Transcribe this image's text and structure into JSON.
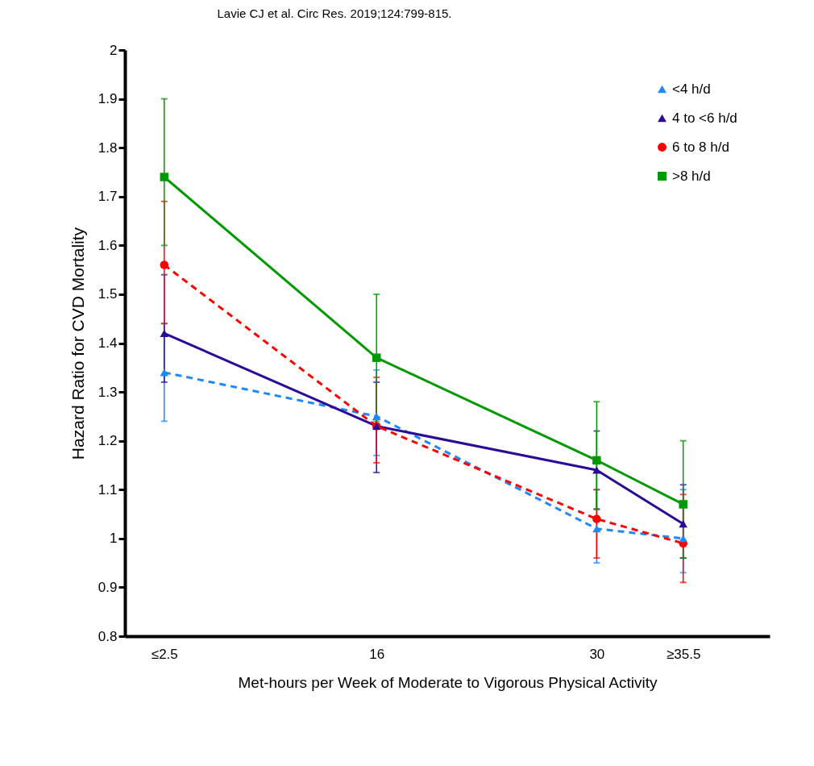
{
  "chart_data": {
    "type": "line",
    "xlabel": "Met-hours per Week of Moderate to Vigorous Physical Activity",
    "ylabel": "Hazard Ratio for CVD Mortality",
    "annotations": [
      "Lavie CJ et al. Circ Res. 2019;124:799-815."
    ],
    "x": [
      2.5,
      16,
      30,
      35.5
    ],
    "xlim": [
      0,
      41
    ],
    "xticks": [
      {
        "value": 2.5,
        "label": "≤2.5"
      },
      16,
      30,
      {
        "value": 35.5,
        "label": "≥35.5"
      }
    ],
    "ylim": [
      0.8,
      2
    ],
    "yticks": [
      0.8,
      0.9,
      1,
      1.1,
      1.2,
      1.3,
      1.4,
      1.5,
      1.6,
      1.7,
      1.8,
      1.9,
      2
    ],
    "grid": false,
    "legend": "top right",
    "series": [
      {
        "name": "<4 h/d",
        "color": "#1e88ff",
        "marker": "triangle",
        "line_style": "dashed",
        "values": [
          1.34,
          1.25,
          1.02,
          1.0
        ],
        "errors": [
          [
            1.24,
            1.44
          ],
          [
            1.17,
            1.345
          ],
          [
            0.95,
            1.1
          ],
          [
            0.93,
            1.1
          ]
        ]
      },
      {
        "name": "4 to <6 h/d",
        "color": "#2a0a96",
        "marker": "triangle",
        "line_style": "solid",
        "values": [
          1.42,
          1.23,
          1.14,
          1.03
        ],
        "errors": [
          [
            1.32,
            1.54
          ],
          [
            1.135,
            1.32
          ],
          [
            1.06,
            1.22
          ],
          [
            0.96,
            1.11
          ]
        ]
      },
      {
        "name": "6 to 8 h/d",
        "color": "#ff0000",
        "marker": "circle",
        "line_style": "dashed",
        "values": [
          1.56,
          1.23,
          1.04,
          0.99
        ],
        "errors": [
          [
            1.44,
            1.69
          ],
          [
            1.155,
            1.33
          ],
          [
            0.96,
            1.1
          ],
          [
            0.91,
            1.09
          ]
        ]
      },
      {
        "name": ">8 h/d",
        "color": "#009900",
        "marker": "square",
        "line_style": "solid",
        "values": [
          1.74,
          1.37,
          1.16,
          1.07
        ],
        "errors": [
          [
            1.6,
            1.9
          ],
          [
            1.24,
            1.5
          ],
          [
            1.06,
            1.28
          ],
          [
            0.96,
            1.2
          ]
        ]
      }
    ]
  }
}
